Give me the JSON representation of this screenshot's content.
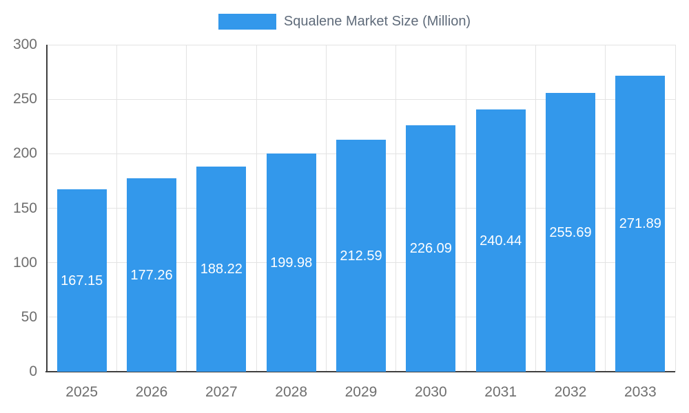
{
  "chart_data": {
    "type": "bar",
    "title": "Squalene Market Size (Million)",
    "legend": "Squalene Market Size (Million)",
    "categories": [
      "2025",
      "2026",
      "2027",
      "2028",
      "2029",
      "2030",
      "2031",
      "2032",
      "2033"
    ],
    "values": [
      167.15,
      177.26,
      188.22,
      199.98,
      212.59,
      226.09,
      240.44,
      255.69,
      271.89
    ],
    "xlabel": "",
    "ylabel": "",
    "ylim": [
      0,
      300
    ],
    "yticks": [
      0,
      50,
      100,
      150,
      200,
      250,
      300
    ],
    "grid": true,
    "legend_position": "top",
    "colors": {
      "bar": "#3398EB",
      "bar_label": "#FFFFFF",
      "axis_text": "#6E6E6E",
      "legend_text": "#5F6B7A",
      "grid": "#E3E3E3",
      "axis_line": "#3F3F3F",
      "background": "#FFFFFF"
    }
  }
}
